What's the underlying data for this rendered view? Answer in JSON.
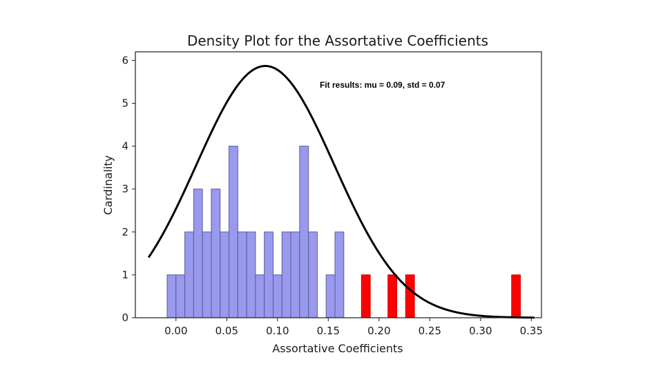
{
  "chart_data": {
    "type": "bar",
    "title": "Density Plot for the Assortative Coefficients",
    "xlabel": "Assortative Coefficients",
    "ylabel": "Cardinality",
    "xlim": [
      -0.04,
      0.36
    ],
    "ylim": [
      0,
      6.2
    ],
    "xticks": [
      0.0,
      0.05,
      0.1,
      0.15,
      0.2,
      0.25,
      0.3,
      0.35
    ],
    "xtick_labels": [
      "0.00",
      "0.05",
      "0.10",
      "0.15",
      "0.20",
      "0.25",
      "0.30",
      "0.35"
    ],
    "yticks": [
      0,
      1,
      2,
      3,
      4,
      5,
      6
    ],
    "ytick_labels": [
      "0",
      "1",
      "2",
      "3",
      "4",
      "5",
      "6"
    ],
    "bin_width": 0.0087,
    "series": [
      {
        "color": "#9999ee",
        "edge_color": "#5a5a99",
        "bins": [
          {
            "x": -0.0087,
            "value": 1
          },
          {
            "x": 0.0,
            "value": 1
          },
          {
            "x": 0.0087,
            "value": 2
          },
          {
            "x": 0.0174,
            "value": 3
          },
          {
            "x": 0.0261,
            "value": 2
          },
          {
            "x": 0.0348,
            "value": 3
          },
          {
            "x": 0.0435,
            "value": 2
          },
          {
            "x": 0.0522,
            "value": 4
          },
          {
            "x": 0.0609,
            "value": 2
          },
          {
            "x": 0.0696,
            "value": 2
          },
          {
            "x": 0.0783,
            "value": 1
          },
          {
            "x": 0.087,
            "value": 2
          },
          {
            "x": 0.0957,
            "value": 1
          },
          {
            "x": 0.1044,
            "value": 2
          },
          {
            "x": 0.1131,
            "value": 2
          },
          {
            "x": 0.1218,
            "value": 4
          },
          {
            "x": 0.1305,
            "value": 2
          },
          {
            "x": 0.1479,
            "value": 1
          },
          {
            "x": 0.1566,
            "value": 2
          }
        ]
      },
      {
        "color": "#ff0000",
        "edge_color": "#cc0000",
        "bins": [
          {
            "x": 0.1827,
            "value": 1
          },
          {
            "x": 0.2088,
            "value": 1
          },
          {
            "x": 0.2262,
            "value": 1
          },
          {
            "x": 0.3306,
            "value": 1
          }
        ]
      }
    ],
    "fit_curve": {
      "type": "normal",
      "mu": 0.088,
      "std": 0.068,
      "peak": 5.87,
      "x_range": [
        -0.027,
        0.353
      ],
      "color": "#000000"
    },
    "annotation": "Fit results: mu = 0.09,  std = 0.07",
    "grid": false,
    "legend": "none"
  }
}
